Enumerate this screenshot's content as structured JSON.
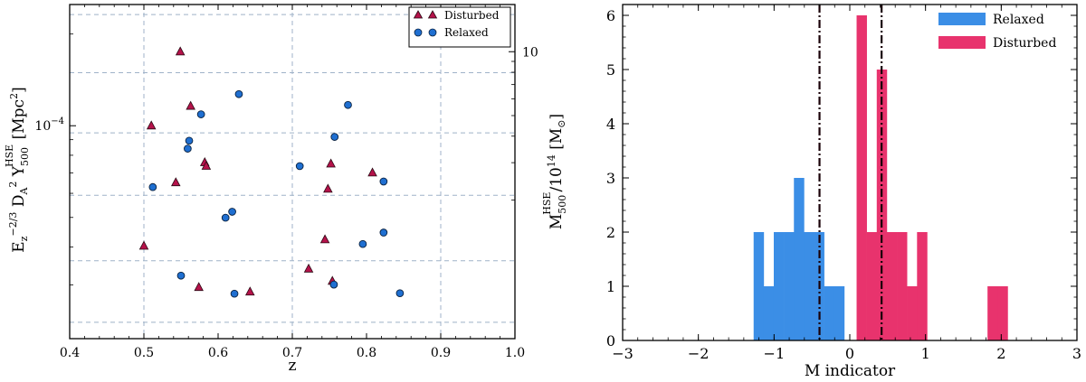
{
  "chart_data": [
    {
      "type": "scatter",
      "title": "",
      "xlabel": "z",
      "ylabel_left": "E_z^{-2/3} D_A^2 Y_500^HSE [Mpc^2]",
      "ylabel_right": "M_500^HSE / 10^14 [M_sun]",
      "xlim": [
        0.4,
        1.0
      ],
      "xticks": [
        0.4,
        0.5,
        0.6,
        0.7,
        0.8,
        0.9,
        1.0
      ],
      "xtick_labels": [
        "0.4",
        "0.5",
        "0.6",
        "0.7",
        "0.8",
        "0.9",
        "1.0"
      ],
      "yscale": "log",
      "ylim": [
        2e-05,
        0.00025
      ],
      "left_tick_label": {
        "base": "10",
        "exponent": "−4"
      },
      "left_tick_value": 0.0001,
      "right_tick_label": "10",
      "right_axis_scale": "log",
      "right_tick_value_on_left_scale": 0.000175,
      "dashed_hlines_fraction": [
        0.03,
        0.204,
        0.384,
        0.571,
        0.767,
        0.951
      ],
      "grid_vlines": [
        0.5,
        0.7,
        0.9
      ],
      "legend_position": "top-right",
      "series": [
        {
          "name": "Disturbed",
          "marker": "triangle",
          "color": "#b5124a",
          "points": [
            {
              "x": 0.549,
              "y": 0.000175
            },
            {
              "x": 0.563,
              "y": 0.000116
            },
            {
              "x": 0.51,
              "y": 0.0001
            },
            {
              "x": 0.582,
              "y": 7.58e-05
            },
            {
              "x": 0.584,
              "y": 7.37e-05
            },
            {
              "x": 0.543,
              "y": 6.51e-05
            },
            {
              "x": 0.752,
              "y": 7.5e-05
            },
            {
              "x": 0.808,
              "y": 7.01e-05
            },
            {
              "x": 0.748,
              "y": 6.2e-05
            },
            {
              "x": 0.5,
              "y": 4.03e-05
            },
            {
              "x": 0.744,
              "y": 4.23e-05
            },
            {
              "x": 0.722,
              "y": 3.39e-05
            },
            {
              "x": 0.754,
              "y": 3.09e-05
            },
            {
              "x": 0.574,
              "y": 2.95e-05
            },
            {
              "x": 0.643,
              "y": 2.85e-05
            }
          ]
        },
        {
          "name": "Relaxed",
          "marker": "circle",
          "color": "#1f6fd1",
          "points": [
            {
              "x": 0.628,
              "y": 0.000127
            },
            {
              "x": 0.775,
              "y": 0.000117
            },
            {
              "x": 0.577,
              "y": 0.000109
            },
            {
              "x": 0.757,
              "y": 9.19e-05
            },
            {
              "x": 0.561,
              "y": 8.93e-05
            },
            {
              "x": 0.559,
              "y": 8.41e-05
            },
            {
              "x": 0.71,
              "y": 7.37e-05
            },
            {
              "x": 0.823,
              "y": 6.56e-05
            },
            {
              "x": 0.512,
              "y": 6.29e-05
            },
            {
              "x": 0.619,
              "y": 5.22e-05
            },
            {
              "x": 0.61,
              "y": 4.99e-05
            },
            {
              "x": 0.823,
              "y": 4.46e-05
            },
            {
              "x": 0.795,
              "y": 4.09e-05
            },
            {
              "x": 0.55,
              "y": 3.22e-05
            },
            {
              "x": 0.756,
              "y": 3.01e-05
            },
            {
              "x": 0.622,
              "y": 2.81e-05
            },
            {
              "x": 0.845,
              "y": 2.82e-05
            }
          ]
        }
      ]
    },
    {
      "type": "bar",
      "title": "",
      "xlabel": "M indicator",
      "ylabel": "",
      "xlim": [
        -3,
        3
      ],
      "ylim": [
        0,
        6.2
      ],
      "xticks": [
        -3,
        -2,
        -1,
        0,
        1,
        2,
        3
      ],
      "xtick_labels": [
        "−3",
        "−2",
        "−1",
        "0",
        "1",
        "2",
        "3"
      ],
      "yticks": [
        0,
        1,
        2,
        3,
        4,
        5,
        6
      ],
      "ytick_labels": [
        "0",
        "1",
        "2",
        "3",
        "4",
        "5",
        "6"
      ],
      "bin_width": 0.133,
      "legend_position": "top-right",
      "vlines": [
        -0.4,
        0.42
      ],
      "series": [
        {
          "name": "Relaxed",
          "color": "#3b8ee6",
          "bins": [
            {
              "left": -1.27,
              "value": 2
            },
            {
              "left": -1.137,
              "value": 1
            },
            {
              "left": -1.004,
              "value": 2
            },
            {
              "left": -0.871,
              "value": 2
            },
            {
              "left": -0.738,
              "value": 3
            },
            {
              "left": -0.605,
              "value": 2
            },
            {
              "left": -0.472,
              "value": 2
            },
            {
              "left": -0.339,
              "value": 1
            },
            {
              "left": -0.206,
              "value": 1
            },
            {
              "left": -0.073,
              "value": 0
            }
          ]
        },
        {
          "name": "Disturbed",
          "color": "#e8336d",
          "bins": [
            {
              "left": 0.06,
              "value": 0
            },
            {
              "left": 0.09,
              "value": 6
            },
            {
              "left": 0.223,
              "value": 2
            },
            {
              "left": 0.356,
              "value": 5
            },
            {
              "left": 0.489,
              "value": 2
            },
            {
              "left": 0.622,
              "value": 2
            },
            {
              "left": 0.755,
              "value": 1
            },
            {
              "left": 0.888,
              "value": 2
            },
            {
              "left": 1.021,
              "value": 0
            },
            {
              "left": 1.154,
              "value": 0
            },
            {
              "left": 1.287,
              "value": 0
            },
            {
              "left": 1.42,
              "value": 0
            },
            {
              "left": 1.553,
              "value": 0
            },
            {
              "left": 1.686,
              "value": 0
            },
            {
              "left": 1.819,
              "value": 1
            },
            {
              "left": 1.952,
              "value": 1
            }
          ]
        }
      ]
    }
  ]
}
